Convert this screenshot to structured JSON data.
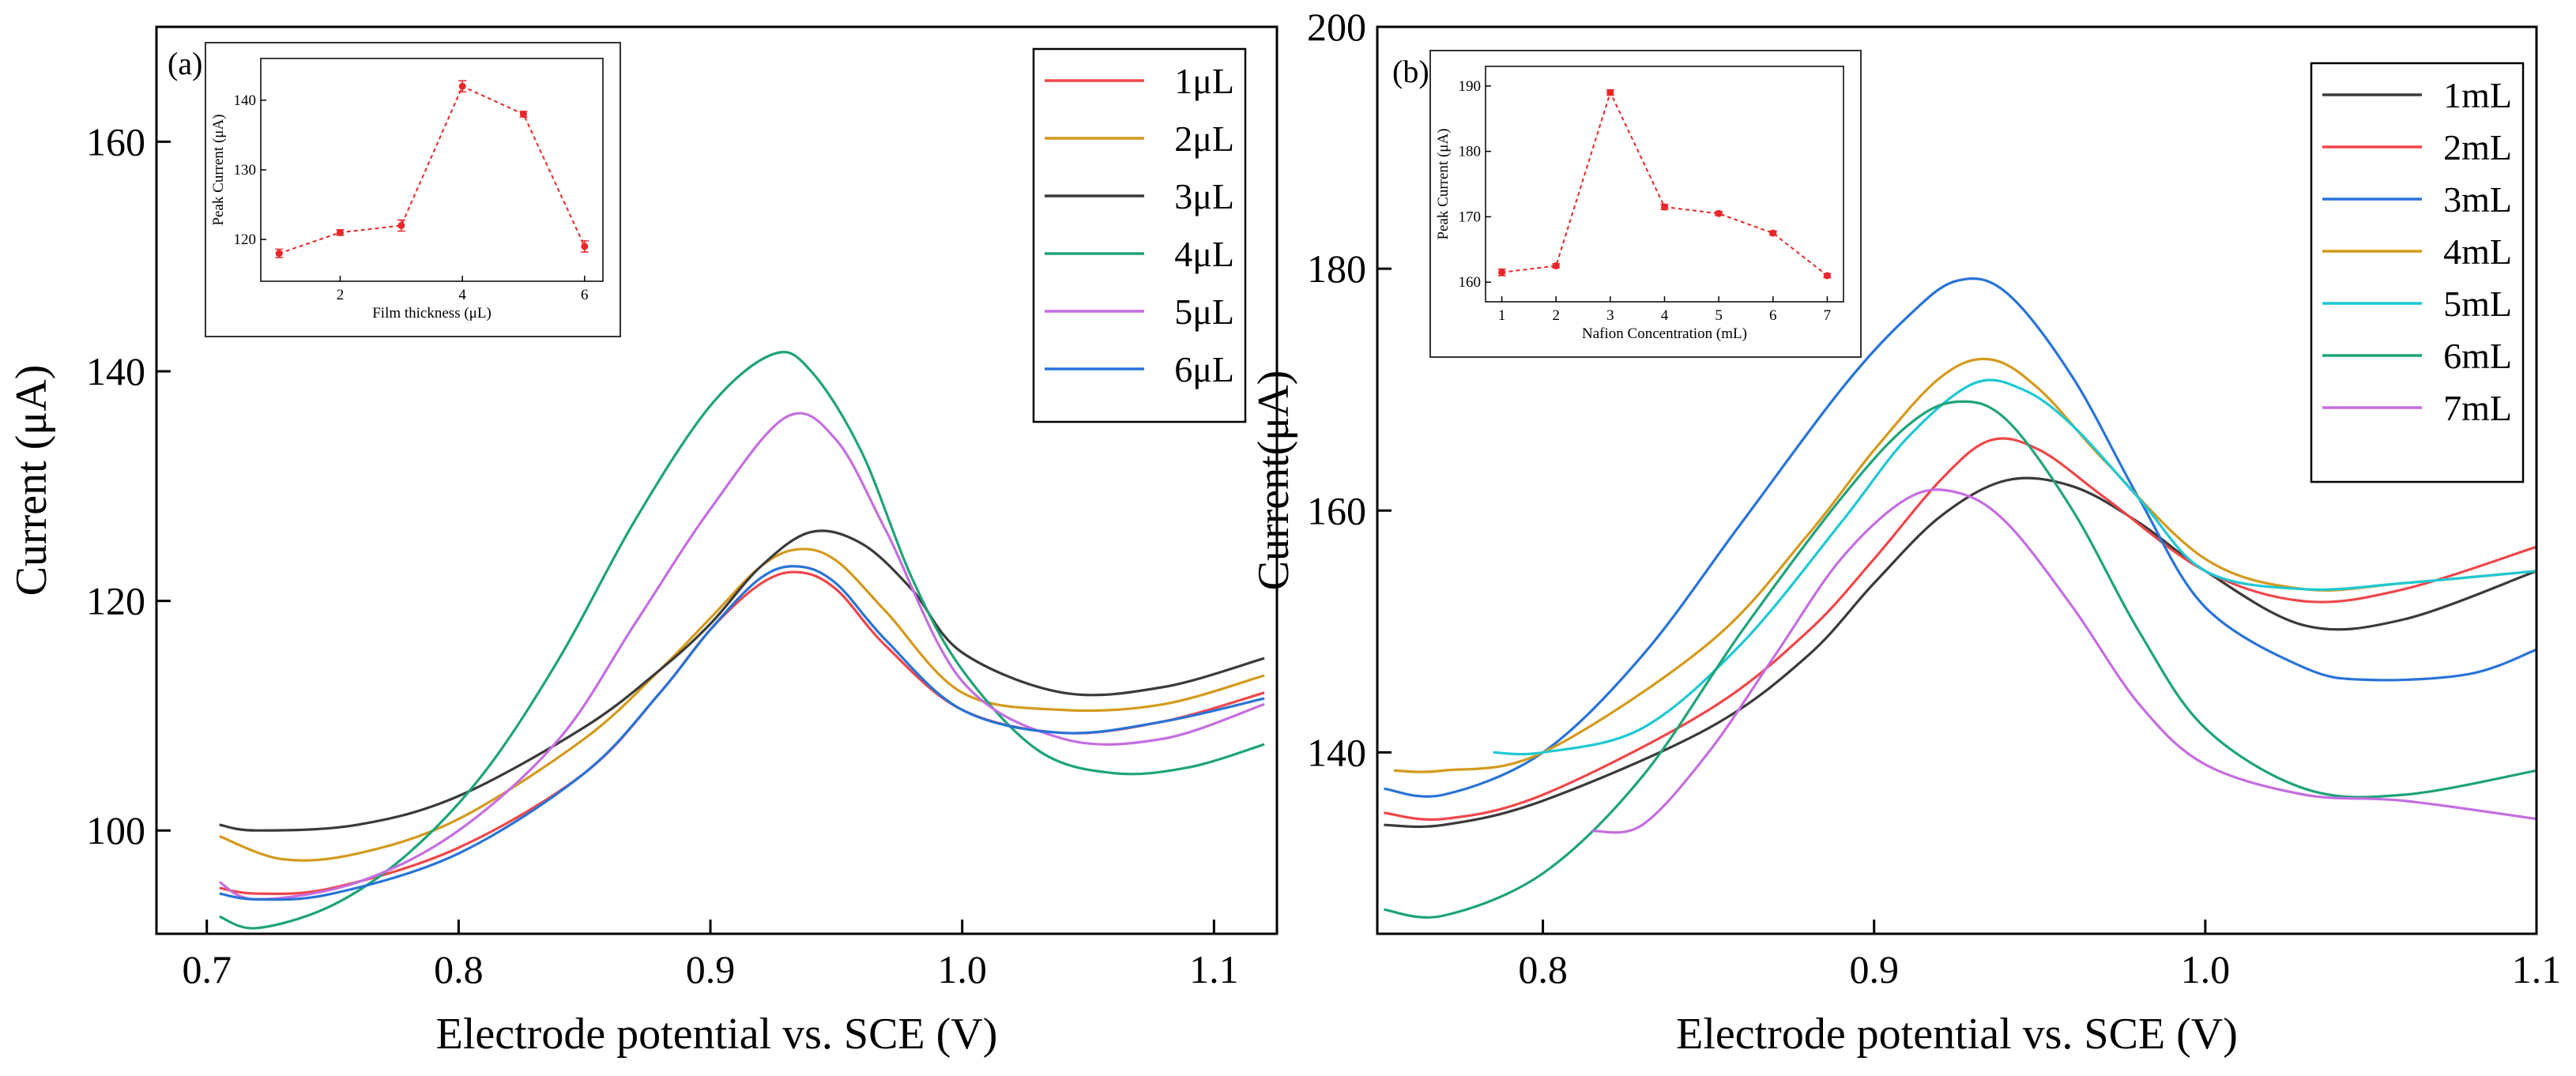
{
  "chart_data": [
    {
      "type": "line",
      "panel_label": "(a)",
      "xlabel": "Electrode potential vs. SCE (V)",
      "ylabel": "Current (μA)",
      "xlim": [
        0.68,
        1.125
      ],
      "ylim": [
        91,
        170
      ],
      "xticks": [
        0.7,
        0.8,
        0.9,
        1.0,
        1.1
      ],
      "xtick_labels": [
        "0.7",
        "0.8",
        "0.9",
        "1.0",
        "1.1"
      ],
      "yticks": [
        100,
        120,
        140,
        160
      ],
      "ytick_labels": [
        "100",
        "120",
        "140",
        "160"
      ],
      "legend_position": "top-right",
      "series": [
        {
          "name": "1μL",
          "color": "#f0464a",
          "x": [
            0.705,
            0.72,
            0.75,
            0.8,
            0.85,
            0.88,
            0.9,
            0.92,
            0.935,
            0.95,
            0.97,
            1.0,
            1.04,
            1.08,
            1.12
          ],
          "y": [
            95,
            94.5,
            95,
            98.5,
            105,
            112,
            117.5,
            121.5,
            122.5,
            121,
            116,
            110.5,
            108.5,
            109.5,
            112
          ]
        },
        {
          "name": "2μL",
          "color": "#d49a1c",
          "x": [
            0.705,
            0.73,
            0.76,
            0.8,
            0.85,
            0.88,
            0.9,
            0.92,
            0.935,
            0.95,
            0.97,
            1.0,
            1.04,
            1.08,
            1.12
          ],
          "y": [
            99.5,
            97.5,
            98,
            101,
            108,
            114,
            118.5,
            123,
            124.5,
            123.5,
            119,
            112,
            110.5,
            111,
            113.5
          ]
        },
        {
          "name": "3μL",
          "color": "#3a3a3a",
          "x": [
            0.705,
            0.72,
            0.76,
            0.8,
            0.85,
            0.88,
            0.9,
            0.92,
            0.94,
            0.96,
            0.98,
            1.0,
            1.04,
            1.08,
            1.12
          ],
          "y": [
            100.5,
            100,
            100.5,
            103,
            109,
            114,
            118,
            123,
            126,
            125,
            121,
            115.5,
            112,
            112.5,
            115
          ]
        },
        {
          "name": "4μL",
          "color": "#1ea37a",
          "x": [
            0.705,
            0.72,
            0.75,
            0.78,
            0.81,
            0.84,
            0.87,
            0.9,
            0.925,
            0.94,
            0.96,
            0.98,
            1.0,
            1.03,
            1.06,
            1.09,
            1.12
          ],
          "y": [
            92.5,
            91.5,
            93.5,
            98,
            105,
            115,
            127,
            137,
            141.5,
            140,
            133,
            122,
            114,
            107,
            105,
            105.5,
            107.5
          ]
        },
        {
          "name": "5μL",
          "color": "#c46ee0",
          "x": [
            0.705,
            0.72,
            0.76,
            0.8,
            0.84,
            0.87,
            0.9,
            0.93,
            0.95,
            0.97,
            1.0,
            1.04,
            1.08,
            1.12
          ],
          "y": [
            95.5,
            94,
            95.5,
            100,
            108,
            118,
            128,
            136,
            134,
            126,
            113,
            108,
            108,
            111
          ]
        },
        {
          "name": "6μL",
          "color": "#2873d8",
          "x": [
            0.705,
            0.72,
            0.75,
            0.8,
            0.85,
            0.88,
            0.9,
            0.92,
            0.935,
            0.95,
            0.97,
            1.0,
            1.04,
            1.08,
            1.12
          ],
          "y": [
            94.5,
            94,
            94.5,
            98,
            105,
            112,
            117.5,
            122,
            123,
            121.5,
            116.5,
            110.5,
            108.5,
            109.5,
            111.5
          ]
        }
      ],
      "inset": {
        "type": "line",
        "xlabel": "Film thickness (μL)",
        "ylabel": "Peak Current (μA)",
        "x": [
          1,
          2,
          3,
          4,
          5,
          6
        ],
        "y": [
          118,
          121,
          122,
          142,
          138,
          119
        ],
        "error": [
          0.6,
          0.4,
          0.8,
          0.8,
          0.4,
          0.8
        ],
        "xlim": [
          0.7,
          6.3
        ],
        "ylim": [
          114,
          146
        ],
        "xticks": [
          2,
          4,
          6
        ],
        "xtick_labels": [
          "2",
          "4",
          "6"
        ],
        "yticks": [
          120,
          130,
          140
        ],
        "ytick_labels": [
          "120",
          "130",
          "140"
        ],
        "color": "#e8262a"
      }
    },
    {
      "type": "line",
      "panel_label": "(b)",
      "xlabel": "Electrode potential vs. SCE (V)",
      "ylabel": "Current(μA)",
      "xlim": [
        0.75,
        1.1
      ],
      "ylim": [
        125,
        200
      ],
      "xticks": [
        0.8,
        0.9,
        1.0,
        1.1
      ],
      "xtick_labels": [
        "0.8",
        "0.9",
        "1.0",
        "1.1"
      ],
      "yticks": [
        140,
        160,
        180,
        200
      ],
      "ytick_labels": [
        "140",
        "160",
        "180",
        "200"
      ],
      "legend_position": "top-right",
      "series": [
        {
          "name": "1mL",
          "color": "#3a3a3a",
          "x": [
            0.752,
            0.77,
            0.8,
            0.85,
            0.88,
            0.9,
            0.92,
            0.94,
            0.96,
            0.98,
            1.0,
            1.03,
            1.06,
            1.1
          ],
          "y": [
            134,
            134,
            136,
            142,
            148,
            154,
            159.5,
            162.5,
            162,
            159,
            155,
            150.5,
            151,
            155
          ]
        },
        {
          "name": "2mL",
          "color": "#f0464a",
          "x": [
            0.752,
            0.77,
            0.8,
            0.85,
            0.88,
            0.9,
            0.92,
            0.935,
            0.95,
            0.97,
            1.0,
            1.03,
            1.06,
            1.1
          ],
          "y": [
            135,
            134.5,
            136.5,
            143.5,
            150,
            156,
            162.5,
            165.8,
            165,
            161,
            155,
            152.5,
            153.5,
            157
          ]
        },
        {
          "name": "3mL",
          "color": "#2873d8",
          "x": [
            0.752,
            0.77,
            0.8,
            0.83,
            0.86,
            0.89,
            0.91,
            0.925,
            0.94,
            0.96,
            0.98,
            1.0,
            1.03,
            1.05,
            1.08,
            1.1
          ],
          "y": [
            137,
            136.5,
            140,
            148,
            159,
            170,
            176,
            179,
            178,
            171,
            161,
            152,
            147,
            146,
            146.5,
            148.5
          ]
        },
        {
          "name": "4mL",
          "color": "#d49a1c",
          "x": [
            0.755,
            0.77,
            0.8,
            0.85,
            0.88,
            0.9,
            0.92,
            0.935,
            0.95,
            0.97,
            1.0,
            1.03,
            1.06,
            1.1
          ],
          "y": [
            138.5,
            138.5,
            140,
            149,
            158,
            165,
            171,
            172.5,
            170,
            164,
            156,
            153.5,
            154,
            155
          ]
        },
        {
          "name": "5mL",
          "color": "#1ec8d4",
          "x": [
            0.785,
            0.8,
            0.83,
            0.86,
            0.89,
            0.91,
            0.93,
            0.945,
            0.96,
            0.98,
            1.0,
            1.03,
            1.06,
            1.1
          ],
          "y": [
            140,
            140,
            142,
            149,
            159,
            166,
            170.5,
            170,
            167,
            161,
            155,
            153.5,
            154,
            155
          ]
        },
        {
          "name": "6mL",
          "color": "#1ea37a",
          "x": [
            0.752,
            0.77,
            0.8,
            0.83,
            0.86,
            0.89,
            0.91,
            0.925,
            0.94,
            0.96,
            0.98,
            1.0,
            1.03,
            1.06,
            1.1
          ],
          "y": [
            127,
            126.5,
            130,
            138,
            150,
            161,
            167,
            169,
            167.5,
            160,
            150,
            142,
            137,
            136.5,
            138.5
          ]
        },
        {
          "name": "7mL",
          "color": "#c46ee0",
          "x": [
            0.815,
            0.83,
            0.85,
            0.87,
            0.89,
            0.91,
            0.925,
            0.94,
            0.96,
            0.98,
            1.0,
            1.03,
            1.06,
            1.1
          ],
          "y": [
            133.5,
            134,
            140,
            148,
            156,
            161,
            161.5,
            159,
            152,
            144,
            139,
            136.5,
            136,
            134.5
          ]
        }
      ],
      "inset": {
        "type": "line",
        "xlabel": "Nafion Concentration (mL)",
        "ylabel": "Peak Current (μA)",
        "x": [
          1,
          2,
          3,
          4,
          5,
          6,
          7
        ],
        "y": [
          161.5,
          162.5,
          189,
          171.5,
          170.5,
          167.5,
          161
        ],
        "error": [
          0.5,
          0.3,
          0.4,
          0.4,
          0.3,
          0.3,
          0.3
        ],
        "xlim": [
          0.7,
          7.3
        ],
        "ylim": [
          157,
          193
        ],
        "xticks": [
          1,
          2,
          3,
          4,
          5,
          6,
          7
        ],
        "xtick_labels": [
          "1",
          "2",
          "3",
          "4",
          "5",
          "6",
          "7"
        ],
        "yticks": [
          160,
          170,
          180,
          190
        ],
        "ytick_labels": [
          "160",
          "170",
          "180",
          "190"
        ],
        "color": "#e8262a"
      }
    }
  ]
}
